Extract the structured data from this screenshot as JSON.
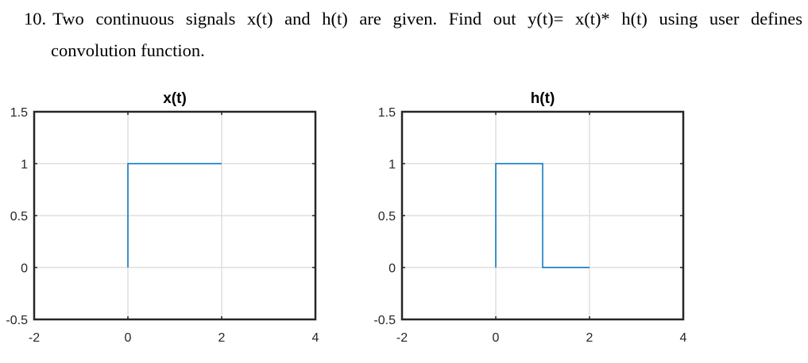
{
  "question": {
    "number": "10.",
    "line1": "Two continuous signals x(t) and h(t) are given. Find out y(t)= x(t)* h(t) using user defines",
    "line2": "convolution function."
  },
  "chart_data": [
    {
      "type": "line",
      "title": "x(t)",
      "xlabel": "",
      "ylabel": "",
      "xlim": [
        -2,
        4
      ],
      "ylim": [
        -0.5,
        1.5
      ],
      "xticks": [
        -2,
        0,
        2,
        4
      ],
      "yticks": [
        -0.5,
        0,
        0.5,
        1,
        1.5
      ],
      "xtick_labels": [
        "-2",
        "0",
        "2",
        "4"
      ],
      "ytick_labels": [
        "-0.5",
        "0",
        "0.5",
        "1",
        "1.5"
      ],
      "grid": true,
      "series": [
        {
          "x": [
            0,
            0,
            2
          ],
          "y": [
            0,
            1,
            1
          ],
          "color": "#0072BD"
        }
      ]
    },
    {
      "type": "line",
      "title": "h(t)",
      "xlabel": "",
      "ylabel": "",
      "xlim": [
        -2,
        4
      ],
      "ylim": [
        -0.5,
        1.5
      ],
      "xticks": [
        -2,
        0,
        2,
        4
      ],
      "yticks": [
        -0.5,
        0,
        0.5,
        1,
        1.5
      ],
      "xtick_labels": [
        "-2",
        "0",
        "2",
        "4"
      ],
      "ytick_labels": [
        "-0.5",
        "0",
        "0.5",
        "1",
        "1.5"
      ],
      "grid": true,
      "series": [
        {
          "x": [
            0,
            0,
            1,
            1,
            2
          ],
          "y": [
            0,
            1,
            1,
            0,
            0
          ],
          "color": "#0072BD"
        }
      ]
    }
  ]
}
